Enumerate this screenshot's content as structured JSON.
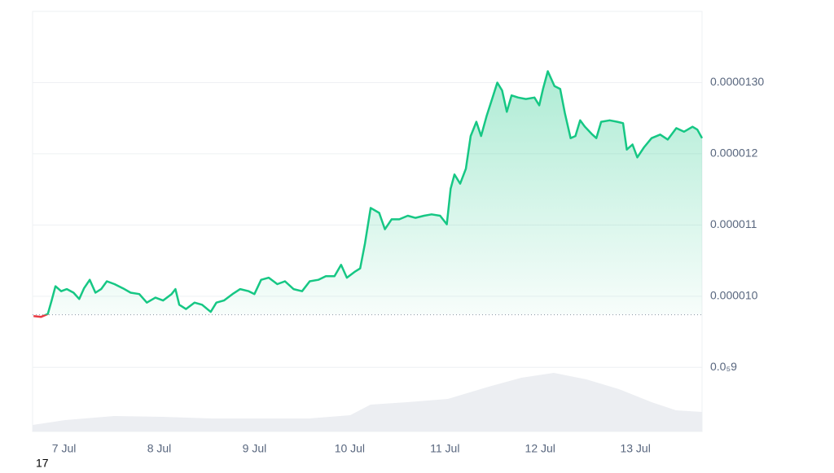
{
  "chart_data": {
    "type": "line",
    "footer_text": "17",
    "xlim": [
      6.67,
      13.7
    ],
    "xticks": [
      {
        "value": 7,
        "label": "7 Jul"
      },
      {
        "value": 8,
        "label": "8 Jul"
      },
      {
        "value": 9,
        "label": "9 Jul"
      },
      {
        "value": 10,
        "label": "10 Jul"
      },
      {
        "value": 11,
        "label": "11 Jul"
      },
      {
        "value": 12,
        "label": "12 Jul"
      },
      {
        "value": 13,
        "label": "13 Jul"
      }
    ],
    "ylim": [
      8.1e-06,
      1.4e-05
    ],
    "yticks": [
      {
        "value": 9e-06,
        "label": "0.0₅9"
      },
      {
        "value": 1e-05,
        "label": "0.000010"
      },
      {
        "value": 1.1e-05,
        "label": "0.000011"
      },
      {
        "value": 1.2e-05,
        "label": "0.000012"
      },
      {
        "value": 1.3e-05,
        "label": "0.0000130"
      }
    ],
    "grid": true,
    "reference": 9.74e-06,
    "up_color": "#16c784",
    "down_color": "#ea3943",
    "series": [
      {
        "color": "#16c784",
        "x": [
          6.68,
          6.76,
          6.83,
          6.87,
          6.91,
          6.97,
          7.03,
          7.1,
          7.16,
          7.21,
          7.27,
          7.33,
          7.39,
          7.45,
          7.53,
          7.62,
          7.7,
          7.79,
          7.87,
          7.96,
          8.04,
          8.13,
          8.17,
          8.21,
          8.28,
          8.37,
          8.45,
          8.54,
          8.6,
          8.68,
          8.77,
          8.85,
          8.94,
          9.0,
          9.07,
          9.15,
          9.24,
          9.32,
          9.41,
          9.5,
          9.58,
          9.67,
          9.75,
          9.84,
          9.91,
          9.97,
          10.05,
          10.11,
          10.16,
          10.22,
          10.31,
          10.37,
          10.44,
          10.52,
          10.61,
          10.69,
          10.78,
          10.86,
          10.95,
          11.02,
          11.06,
          11.1,
          11.16,
          11.22,
          11.27,
          11.33,
          11.38,
          11.44,
          11.5,
          11.55,
          11.6,
          11.65,
          11.7,
          11.77,
          11.85,
          11.94,
          11.99,
          12.03,
          12.08,
          12.15,
          12.21,
          12.26,
          12.32,
          12.37,
          12.42,
          12.47,
          12.54,
          12.59,
          12.64,
          12.73,
          12.81,
          12.87,
          12.91,
          12.97,
          13.02,
          13.09,
          13.17,
          13.26,
          13.34,
          13.43,
          13.51,
          13.6,
          13.65,
          13.7
        ],
        "values": [
          9.72e-06,
          9.71e-06,
          9.75e-06,
          9.94e-06,
          1.014e-05,
          1.007e-05,
          1.01e-05,
          1.005e-05,
          9.96e-06,
          1.011e-05,
          1.023e-05,
          1.005e-05,
          1.01e-05,
          1.021e-05,
          1.017e-05,
          1.011e-05,
          1.005e-05,
          1.003e-05,
          9.91e-06,
          9.98e-06,
          9.94e-06,
          1.003e-05,
          1.01e-05,
          9.88e-06,
          9.82e-06,
          9.91e-06,
          9.88e-06,
          9.78e-06,
          9.91e-06,
          9.94e-06,
          1.003e-05,
          1.01e-05,
          1.007e-05,
          1.003e-05,
          1.023e-05,
          1.026e-05,
          1.017e-05,
          1.021e-05,
          1.01e-05,
          1.007e-05,
          1.021e-05,
          1.023e-05,
          1.028e-05,
          1.028e-05,
          1.044e-05,
          1.026e-05,
          1.034e-05,
          1.039e-05,
          1.074e-05,
          1.124e-05,
          1.117e-05,
          1.094e-05,
          1.108e-05,
          1.108e-05,
          1.113e-05,
          1.11e-05,
          1.113e-05,
          1.115e-05,
          1.113e-05,
          1.101e-05,
          1.151e-05,
          1.171e-05,
          1.158e-05,
          1.179e-05,
          1.225e-05,
          1.245e-05,
          1.225e-05,
          1.254e-05,
          1.279e-05,
          1.3e-05,
          1.289e-05,
          1.259e-05,
          1.282e-05,
          1.279e-05,
          1.277e-05,
          1.279e-05,
          1.268e-05,
          1.291e-05,
          1.316e-05,
          1.295e-05,
          1.291e-05,
          1.257e-05,
          1.222e-05,
          1.225e-05,
          1.247e-05,
          1.238e-05,
          1.228e-05,
          1.222e-05,
          1.245e-05,
          1.247e-05,
          1.245e-05,
          1.243e-05,
          1.206e-05,
          1.213e-05,
          1.195e-05,
          1.209e-05,
          1.222e-05,
          1.227e-05,
          1.22e-05,
          1.236e-05,
          1.231e-05,
          1.238e-05,
          1.234e-05,
          1.222e-05
        ]
      }
    ]
  }
}
